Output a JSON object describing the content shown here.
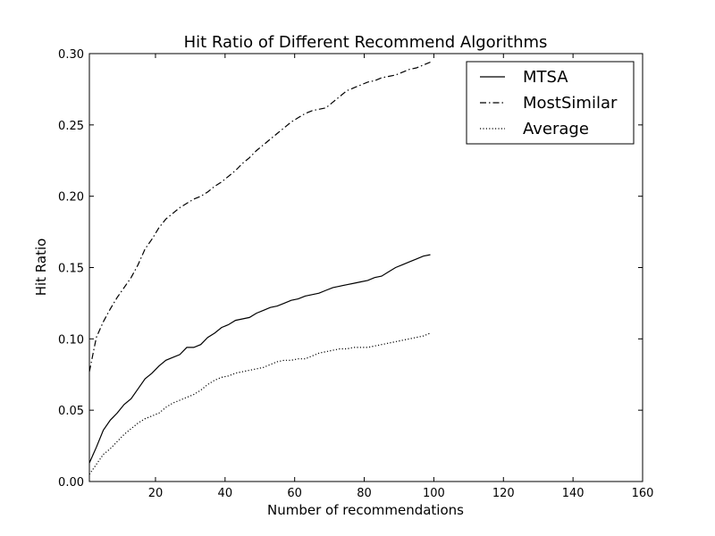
{
  "chart_data": {
    "type": "line",
    "title": "Hit Ratio of Different Recommend Algorithms",
    "xlabel": "Number of recommendations",
    "ylabel": "Hit Ratio",
    "xlim": [
      1,
      160
    ],
    "ylim": [
      0,
      0.3
    ],
    "xticks": [
      20,
      40,
      60,
      80,
      100,
      120,
      140,
      160
    ],
    "xtick_labels": [
      "20",
      "40",
      "60",
      "80",
      "100",
      "120",
      "140",
      "160"
    ],
    "yticks": [
      0,
      0.05,
      0.1,
      0.15,
      0.2,
      0.25,
      0.3
    ],
    "ytick_labels": [
      "0.00",
      "0.05",
      "0.10",
      "0.15",
      "0.20",
      "0.25",
      "0.30"
    ],
    "grid": false,
    "legend_position": "top-right",
    "series": [
      {
        "name": "MTSA",
        "style": "solid",
        "x": [
          1,
          3,
          5,
          7,
          9,
          11,
          13,
          15,
          17,
          19,
          21,
          23,
          25,
          27,
          29,
          31,
          33,
          35,
          37,
          39,
          41,
          43,
          45,
          47,
          49,
          51,
          53,
          55,
          57,
          59,
          61,
          63,
          65,
          67,
          69,
          71,
          73,
          75,
          77,
          79,
          81,
          83,
          85,
          87,
          89,
          91,
          93,
          95,
          97,
          99
        ],
        "values": [
          0.013,
          0.024,
          0.036,
          0.043,
          0.048,
          0.054,
          0.058,
          0.065,
          0.072,
          0.076,
          0.081,
          0.085,
          0.087,
          0.089,
          0.094,
          0.094,
          0.096,
          0.101,
          0.104,
          0.108,
          0.11,
          0.113,
          0.114,
          0.115,
          0.118,
          0.12,
          0.122,
          0.123,
          0.125,
          0.127,
          0.128,
          0.13,
          0.131,
          0.132,
          0.134,
          0.136,
          0.137,
          0.138,
          0.139,
          0.14,
          0.141,
          0.143,
          0.144,
          0.147,
          0.15,
          0.152,
          0.154,
          0.156,
          0.158,
          0.159
        ]
      },
      {
        "name": "MostSimilar",
        "style": "dashdot",
        "x": [
          1,
          3,
          5,
          7,
          9,
          11,
          13,
          15,
          17,
          19,
          21,
          23,
          25,
          27,
          29,
          31,
          33,
          35,
          37,
          39,
          41,
          43,
          45,
          47,
          49,
          51,
          53,
          55,
          57,
          59,
          61,
          63,
          65,
          67,
          69,
          71,
          73,
          75,
          77,
          79,
          81,
          83,
          85,
          87,
          89,
          91,
          93,
          95,
          97,
          99
        ],
        "values": [
          0.077,
          0.101,
          0.112,
          0.121,
          0.129,
          0.136,
          0.143,
          0.152,
          0.163,
          0.17,
          0.178,
          0.184,
          0.188,
          0.192,
          0.195,
          0.198,
          0.2,
          0.203,
          0.207,
          0.21,
          0.214,
          0.218,
          0.223,
          0.227,
          0.232,
          0.236,
          0.24,
          0.244,
          0.248,
          0.252,
          0.255,
          0.258,
          0.26,
          0.261,
          0.262,
          0.266,
          0.27,
          0.274,
          0.276,
          0.278,
          0.28,
          0.281,
          0.283,
          0.284,
          0.285,
          0.287,
          0.289,
          0.29,
          0.292,
          0.294
        ]
      },
      {
        "name": "Average",
        "style": "dotted",
        "x": [
          1,
          3,
          5,
          7,
          9,
          11,
          13,
          15,
          17,
          19,
          21,
          23,
          25,
          27,
          29,
          31,
          33,
          35,
          37,
          39,
          41,
          43,
          45,
          47,
          49,
          51,
          53,
          55,
          57,
          59,
          61,
          63,
          65,
          67,
          69,
          71,
          73,
          75,
          77,
          79,
          81,
          83,
          85,
          87,
          89,
          91,
          93,
          95,
          97,
          99
        ],
        "values": [
          0.005,
          0.012,
          0.019,
          0.023,
          0.028,
          0.033,
          0.037,
          0.041,
          0.044,
          0.046,
          0.048,
          0.052,
          0.055,
          0.057,
          0.059,
          0.061,
          0.064,
          0.068,
          0.071,
          0.073,
          0.074,
          0.076,
          0.077,
          0.078,
          0.079,
          0.08,
          0.082,
          0.084,
          0.085,
          0.085,
          0.086,
          0.086,
          0.088,
          0.09,
          0.091,
          0.092,
          0.093,
          0.093,
          0.094,
          0.094,
          0.094,
          0.095,
          0.096,
          0.097,
          0.098,
          0.099,
          0.1,
          0.101,
          0.102,
          0.104
        ]
      }
    ]
  }
}
